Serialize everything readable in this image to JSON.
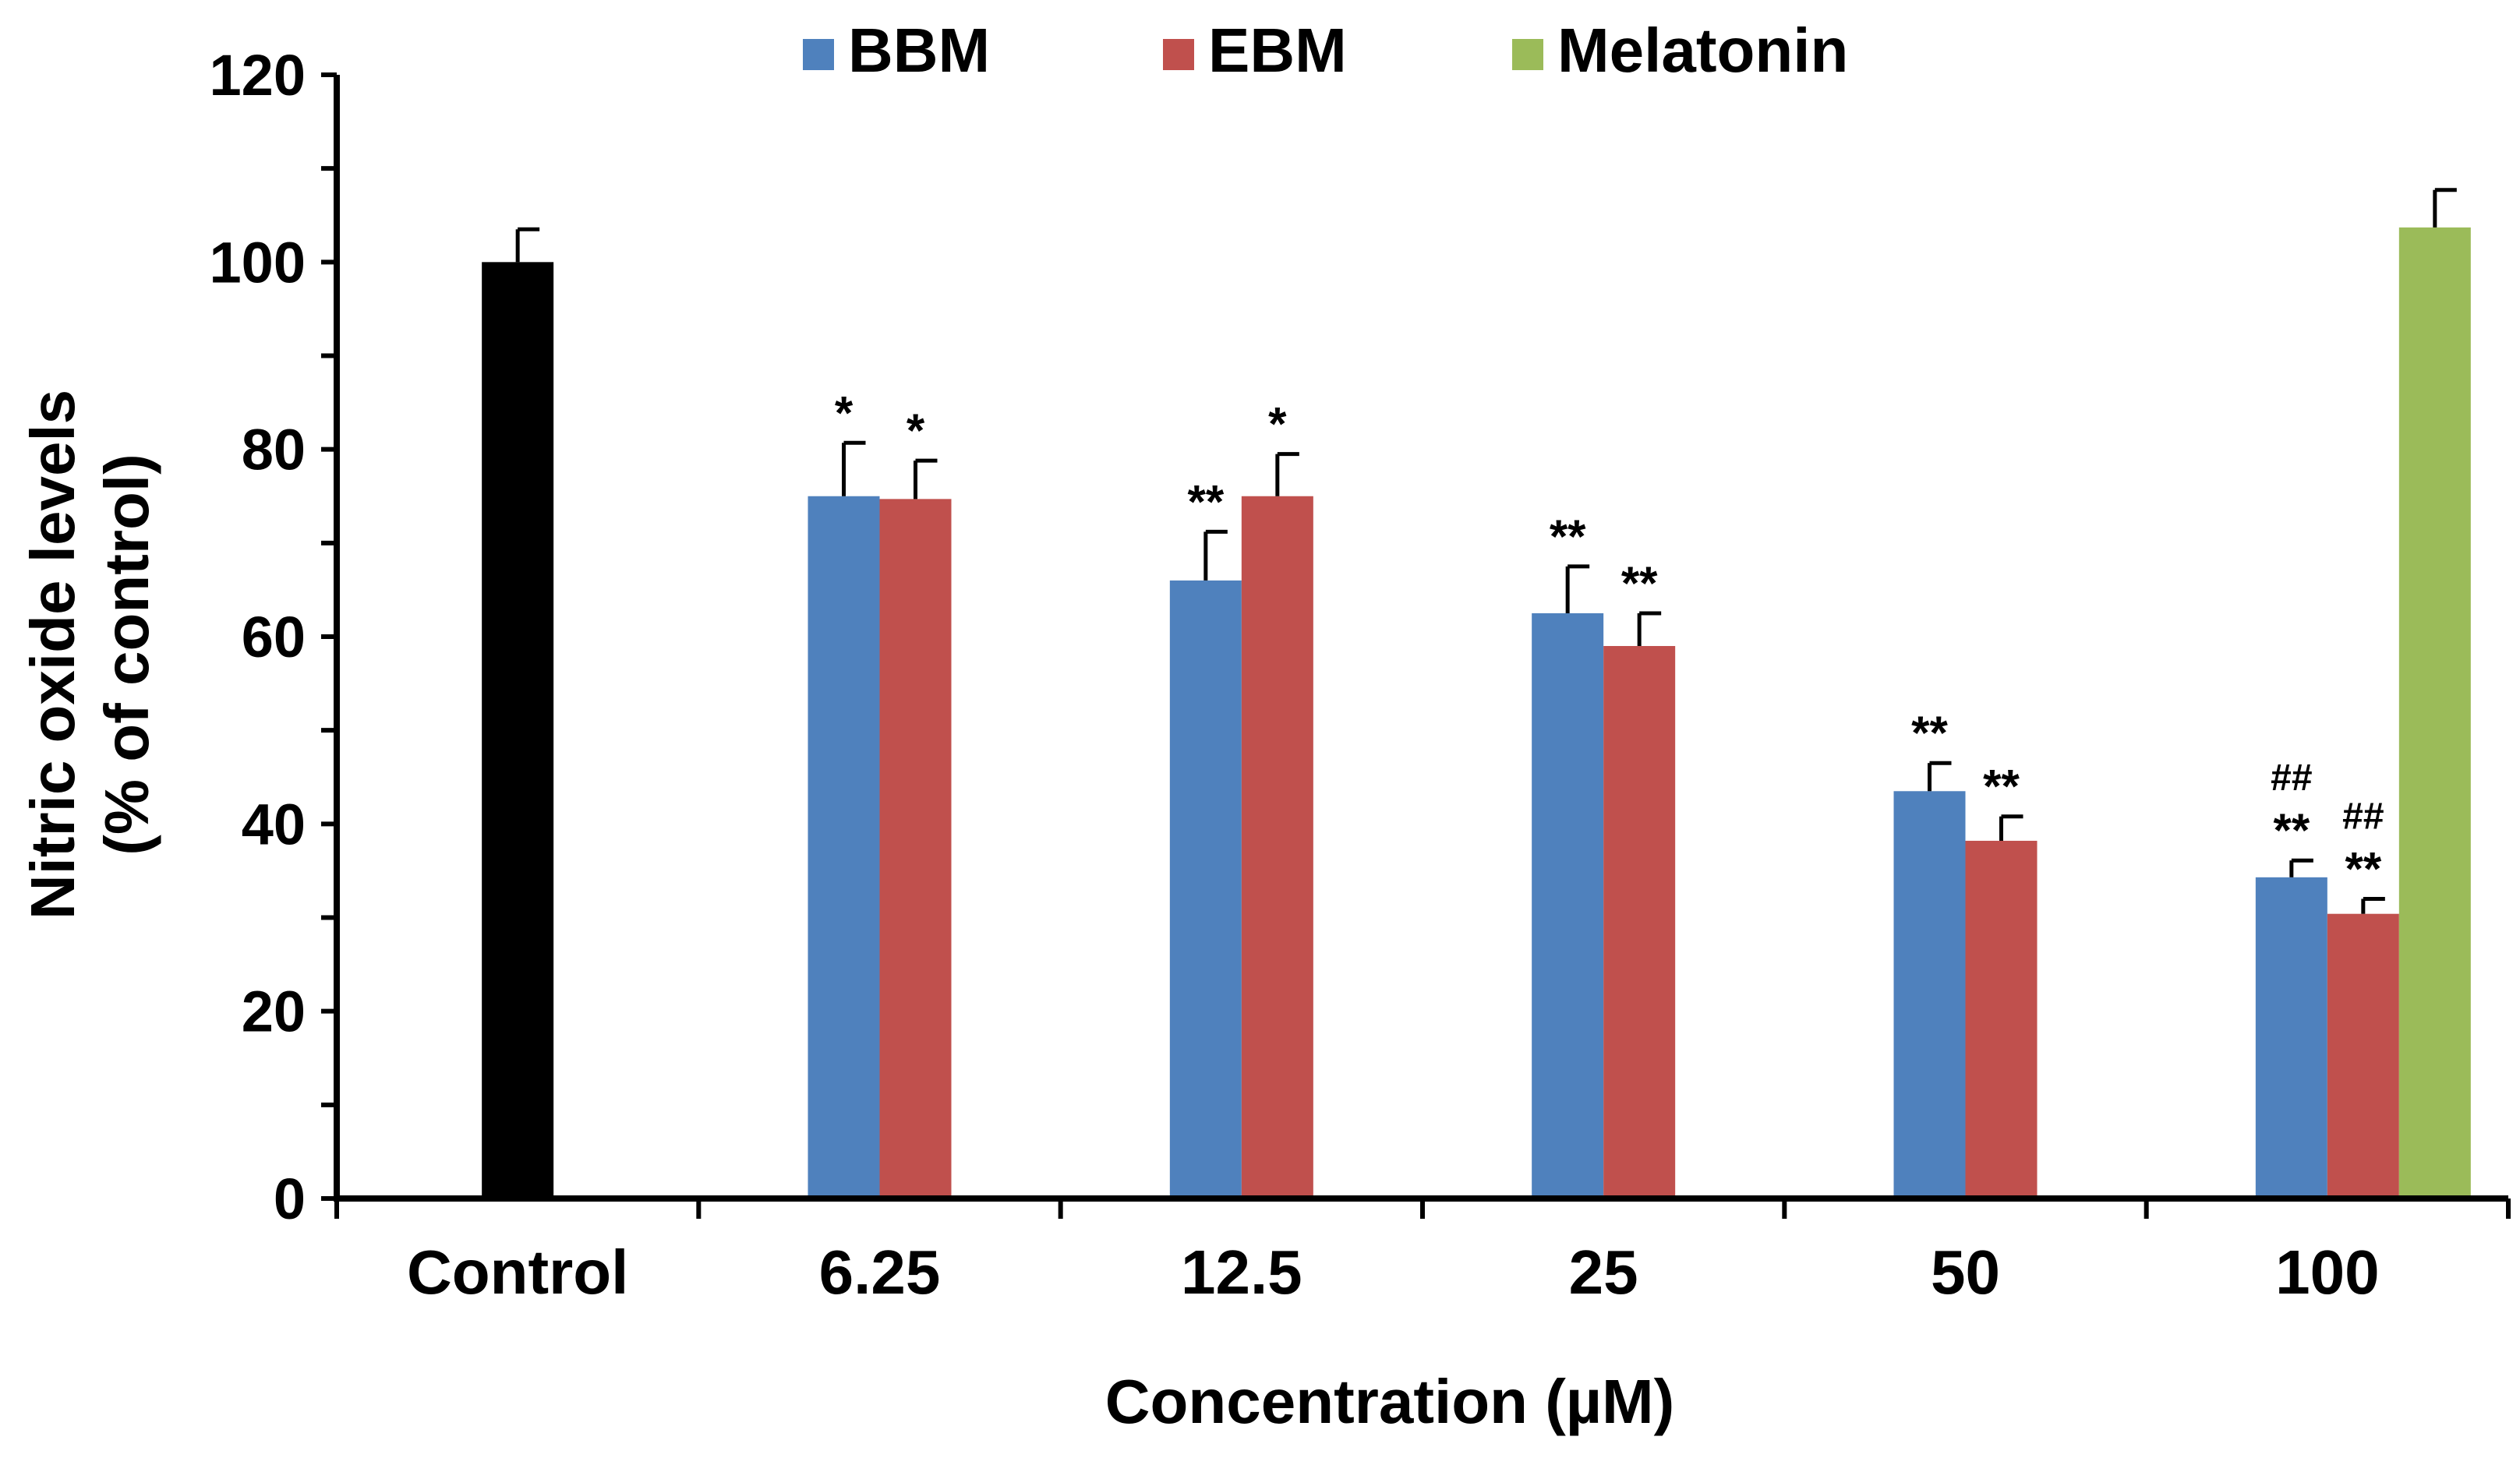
{
  "chart_data": {
    "type": "bar",
    "title": "",
    "xlabel": "Concentration (µM)",
    "ylabel_line1": "Nitric oxide levels",
    "ylabel_line2": "(% of control)",
    "ylim": [
      0,
      120
    ],
    "yticks": [
      0,
      20,
      40,
      60,
      80,
      100,
      120
    ],
    "grid": false,
    "legend_position": "top",
    "categories": [
      "Control",
      "6.25",
      "12.5",
      "25",
      "50",
      "100"
    ],
    "series": [
      {
        "name": "Control",
        "color": "#000000",
        "in_legend": false,
        "values": [
          100,
          null,
          null,
          null,
          null,
          null
        ],
        "errors": [
          3.5,
          null,
          null,
          null,
          null,
          null
        ],
        "annotations": [
          "",
          "",
          "",
          "",
          "",
          ""
        ],
        "annotations_hash": [
          "",
          "",
          "",
          "",
          "",
          ""
        ]
      },
      {
        "name": "BBM",
        "color": "#4f81bd",
        "in_legend": true,
        "values": [
          null,
          75,
          66,
          62.5,
          43.5,
          34.3
        ],
        "errors": [
          null,
          5.7,
          5.2,
          5,
          3,
          1.8
        ],
        "annotations": [
          "",
          "*",
          "**",
          "**",
          "**",
          "**"
        ],
        "annotations_hash": [
          "",
          "",
          "",
          "",
          "",
          "##"
        ]
      },
      {
        "name": "EBM",
        "color": "#c0504d",
        "in_legend": true,
        "values": [
          null,
          74.7,
          75,
          59,
          38.2,
          30.4
        ],
        "errors": [
          null,
          4.1,
          4.5,
          3.5,
          2.6,
          1.6
        ],
        "annotations": [
          "",
          "*",
          "*",
          "**",
          "**",
          "**"
        ],
        "annotations_hash": [
          "",
          "",
          "",
          "",
          "",
          "##"
        ]
      },
      {
        "name": "Melatonin",
        "color": "#9bbb59",
        "in_legend": true,
        "values": [
          null,
          null,
          null,
          null,
          null,
          103.7
        ],
        "errors": [
          null,
          null,
          null,
          null,
          null,
          4
        ],
        "annotations": [
          "",
          "",
          "",
          "",
          "",
          ""
        ],
        "annotations_hash": [
          "",
          "",
          "",
          "",
          "",
          ""
        ]
      }
    ]
  }
}
